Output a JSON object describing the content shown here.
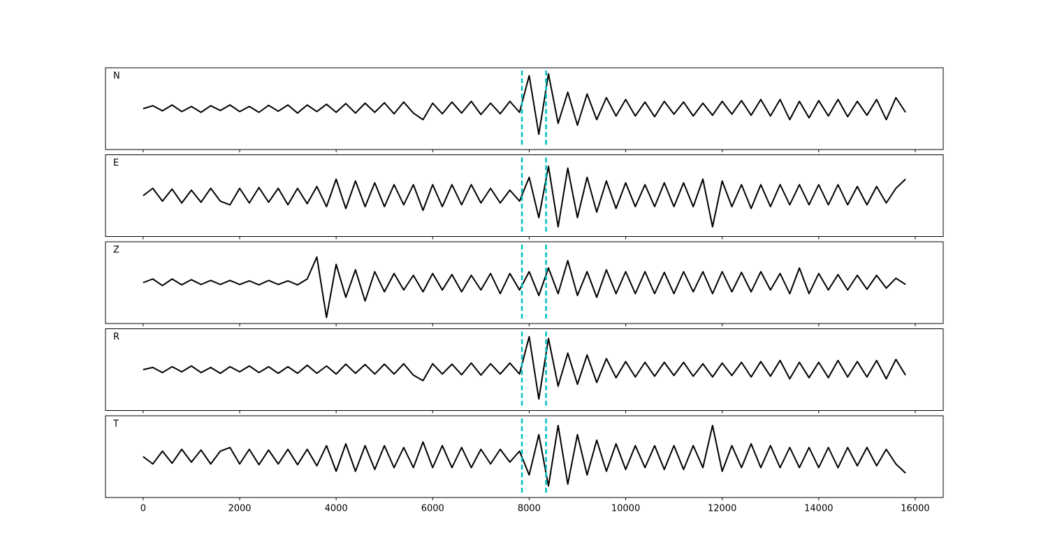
{
  "chart_data": {
    "type": "line",
    "x": [
      0,
      200,
      400,
      600,
      800,
      1000,
      1200,
      1400,
      1600,
      1800,
      2000,
      2200,
      2400,
      2600,
      2800,
      3000,
      3200,
      3400,
      3600,
      3800,
      4000,
      4200,
      4400,
      4600,
      4800,
      5000,
      5200,
      5400,
      5600,
      5800,
      6000,
      6200,
      6400,
      6600,
      6800,
      7000,
      7200,
      7400,
      7600,
      7800,
      8000,
      8200,
      8400,
      8600,
      8800,
      9000,
      9200,
      9400,
      9600,
      9800,
      10000,
      10200,
      10400,
      10600,
      10800,
      11000,
      11200,
      11400,
      11600,
      11800,
      12000,
      12200,
      12400,
      12600,
      12800,
      13000,
      13200,
      13400,
      13600,
      13800,
      14000,
      14200,
      14400,
      14600,
      14800,
      15000,
      15200,
      15400,
      15600,
      15800
    ],
    "series": [
      {
        "name": "N",
        "color": "#000000",
        "values": [
          0,
          0.08,
          -0.06,
          0.1,
          -0.08,
          0.06,
          -0.1,
          0.08,
          -0.05,
          0.1,
          -0.08,
          0.06,
          -0.1,
          0.09,
          -0.07,
          0.1,
          -0.12,
          0.1,
          -0.08,
          0.12,
          -0.1,
          0.14,
          -0.12,
          0.15,
          -0.1,
          0.16,
          -0.14,
          0.18,
          -0.12,
          -0.3,
          0.15,
          -0.14,
          0.18,
          -0.12,
          0.2,
          -0.16,
          0.15,
          -0.14,
          0.2,
          -0.1,
          0.9,
          -0.7,
          0.95,
          -0.4,
          0.45,
          -0.45,
          0.4,
          -0.3,
          0.3,
          -0.2,
          0.25,
          -0.2,
          0.18,
          -0.22,
          0.2,
          -0.15,
          0.18,
          -0.2,
          0.15,
          -0.18,
          0.2,
          -0.15,
          0.22,
          -0.18,
          0.25,
          -0.2,
          0.25,
          -0.3,
          0.2,
          -0.25,
          0.22,
          -0.2,
          0.25,
          -0.22,
          0.2,
          -0.18,
          0.25,
          -0.3,
          0.3,
          -0.1
        ]
      },
      {
        "name": "E",
        "color": "#000000",
        "values": [
          0,
          0.2,
          -0.15,
          0.18,
          -0.2,
          0.15,
          -0.18,
          0.2,
          -0.15,
          -0.25,
          0.2,
          -0.2,
          0.22,
          -0.18,
          0.2,
          -0.25,
          0.2,
          -0.22,
          0.25,
          -0.3,
          0.45,
          -0.35,
          0.4,
          -0.3,
          0.35,
          -0.3,
          0.3,
          -0.25,
          0.3,
          -0.4,
          0.3,
          -0.3,
          0.3,
          -0.25,
          0.3,
          -0.2,
          0.2,
          -0.2,
          0.15,
          -0.15,
          0.5,
          -0.6,
          0.8,
          -0.85,
          0.75,
          -0.6,
          0.5,
          -0.45,
          0.4,
          -0.35,
          0.35,
          -0.3,
          0.3,
          -0.3,
          0.35,
          -0.3,
          0.35,
          -0.3,
          0.45,
          -0.85,
          0.4,
          -0.3,
          0.3,
          -0.35,
          0.3,
          -0.3,
          0.3,
          -0.25,
          0.3,
          -0.25,
          0.3,
          -0.25,
          0.3,
          -0.25,
          0.25,
          -0.25,
          0.25,
          -0.2,
          0.2,
          0.45
        ]
      },
      {
        "name": "Z",
        "color": "#000000",
        "values": [
          0,
          0.1,
          -0.08,
          0.1,
          -0.06,
          0.08,
          -0.05,
          0.06,
          -0.05,
          0.06,
          -0.05,
          0.05,
          -0.06,
          0.06,
          -0.05,
          0.05,
          -0.06,
          0.1,
          0.7,
          -0.95,
          0.5,
          -0.4,
          0.35,
          -0.5,
          0.3,
          -0.25,
          0.25,
          -0.2,
          0.2,
          -0.25,
          0.25,
          -0.2,
          0.22,
          -0.25,
          0.2,
          -0.2,
          0.25,
          -0.3,
          0.25,
          -0.2,
          0.3,
          -0.35,
          0.4,
          -0.3,
          0.6,
          -0.35,
          0.3,
          -0.4,
          0.35,
          -0.3,
          0.3,
          -0.3,
          0.3,
          -0.3,
          0.28,
          -0.3,
          0.3,
          -0.25,
          0.3,
          -0.3,
          0.3,
          -0.25,
          0.28,
          -0.25,
          0.3,
          -0.2,
          0.25,
          -0.3,
          0.4,
          -0.3,
          0.25,
          -0.2,
          0.22,
          -0.2,
          0.2,
          -0.18,
          0.2,
          -0.15,
          0.12,
          -0.05
        ]
      },
      {
        "name": "R",
        "color": "#000000",
        "values": [
          0,
          0.06,
          -0.08,
          0.08,
          -0.06,
          0.1,
          -0.08,
          0.06,
          -0.1,
          0.08,
          -0.06,
          0.1,
          -0.08,
          0.08,
          -0.1,
          0.08,
          -0.1,
          0.12,
          -0.1,
          0.1,
          -0.12,
          0.15,
          -0.1,
          0.14,
          -0.12,
          0.15,
          -0.12,
          0.16,
          -0.15,
          -0.3,
          0.16,
          -0.12,
          0.15,
          -0.14,
          0.18,
          -0.15,
          0.16,
          -0.12,
          0.18,
          -0.12,
          0.9,
          -0.8,
          0.85,
          -0.45,
          0.45,
          -0.4,
          0.4,
          -0.35,
          0.3,
          -0.22,
          0.22,
          -0.2,
          0.2,
          -0.18,
          0.2,
          -0.16,
          0.2,
          -0.18,
          0.16,
          -0.2,
          0.18,
          -0.16,
          0.2,
          -0.2,
          0.22,
          -0.18,
          0.25,
          -0.25,
          0.2,
          -0.22,
          0.2,
          -0.22,
          0.25,
          -0.2,
          0.22,
          -0.2,
          0.25,
          -0.25,
          0.28,
          -0.15
        ]
      },
      {
        "name": "T",
        "color": "#000000",
        "values": [
          0,
          -0.2,
          0.15,
          -0.18,
          0.2,
          -0.15,
          0.18,
          -0.2,
          0.15,
          0.25,
          -0.2,
          0.2,
          -0.22,
          0.18,
          -0.2,
          0.2,
          -0.22,
          0.2,
          -0.25,
          0.3,
          -0.4,
          0.35,
          -0.4,
          0.3,
          -0.35,
          0.3,
          -0.3,
          0.25,
          -0.3,
          0.4,
          -0.3,
          0.3,
          -0.3,
          0.25,
          -0.3,
          0.2,
          -0.2,
          0.2,
          -0.15,
          0.15,
          -0.5,
          0.6,
          -0.8,
          0.85,
          -0.75,
          0.6,
          -0.5,
          0.45,
          -0.4,
          0.35,
          -0.35,
          0.3,
          -0.3,
          0.3,
          -0.35,
          0.3,
          -0.35,
          0.3,
          -0.3,
          0.85,
          -0.4,
          0.3,
          -0.3,
          0.35,
          -0.3,
          0.3,
          -0.3,
          0.25,
          -0.3,
          0.25,
          -0.3,
          0.25,
          -0.3,
          0.25,
          -0.25,
          0.25,
          -0.25,
          0.2,
          -0.2,
          -0.45
        ]
      }
    ],
    "vlines": {
      "values": [
        7850,
        8350
      ],
      "color": "#00bfbf"
    },
    "xlim": [
      -780,
      16580
    ],
    "xticks": [
      0,
      2000,
      4000,
      6000,
      8000,
      10000,
      12000,
      14000,
      16000
    ],
    "ylim": [
      -1,
      1
    ]
  }
}
